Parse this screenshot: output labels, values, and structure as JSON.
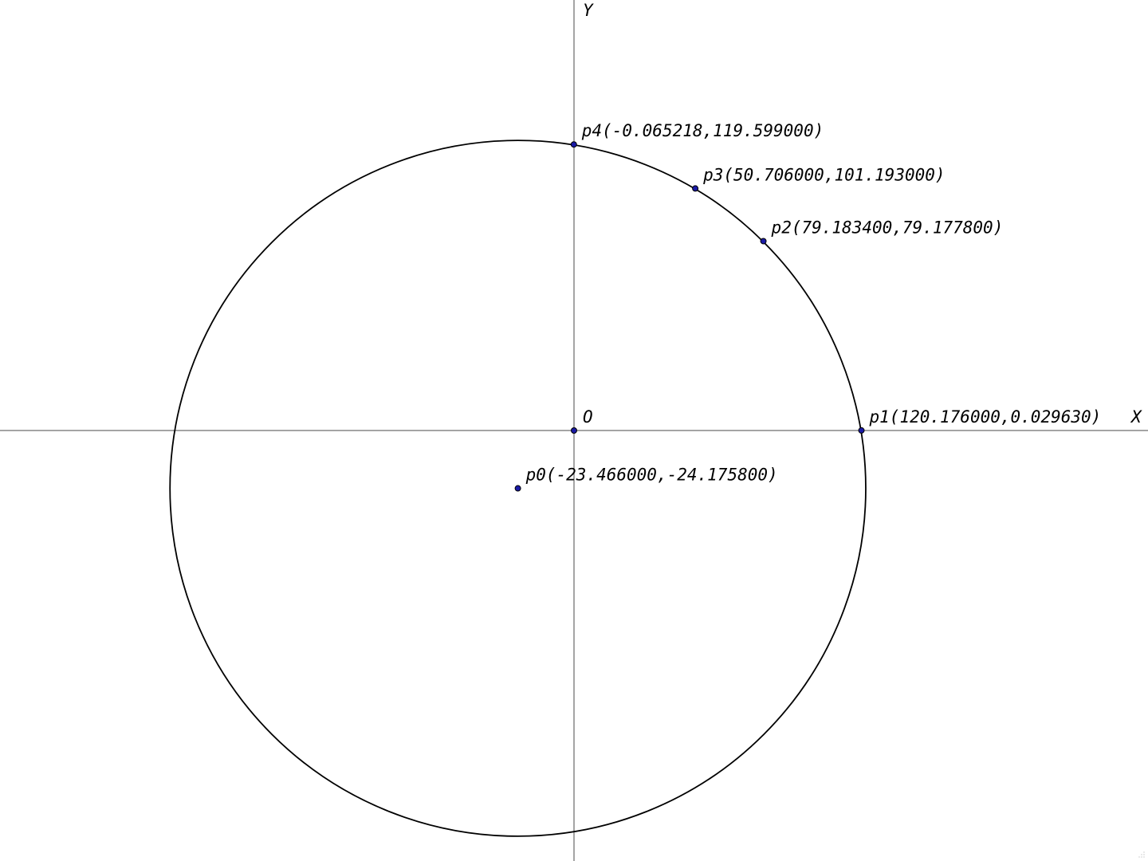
{
  "figure": {
    "x_axis_label": "X",
    "y_axis_label": "Y",
    "origin_label": "O",
    "colors": {
      "point_fill": "#1a1aa6",
      "stroke": "#000000",
      "axis": "#4a4a4a"
    },
    "circle": {
      "center": [
        -23.466,
        -24.1758
      ],
      "radius": 145.46
    },
    "points": [
      {
        "id": "p0",
        "label": "p0(-23.466000,-24.175800)",
        "x": -23.466,
        "y": -24.1758
      },
      {
        "id": "p1",
        "label": "p1(120.176000,0.029630)",
        "x": 120.176,
        "y": 0.02963
      },
      {
        "id": "p2",
        "label": "p2(79.183400,79.177800)",
        "x": 79.1834,
        "y": 79.1778
      },
      {
        "id": "p3",
        "label": "p3(50.706000,101.193000)",
        "x": 50.706,
        "y": 101.193
      },
      {
        "id": "p4",
        "label": "p4(-0.065218,119.599000)",
        "x": -0.065218,
        "y": 119.599
      }
    ]
  }
}
